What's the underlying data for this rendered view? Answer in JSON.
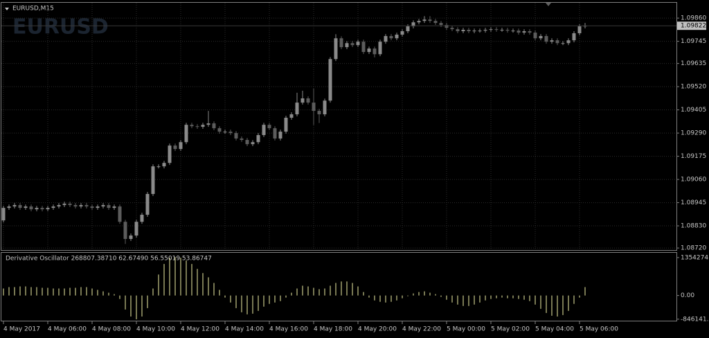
{
  "chart_data": [
    {
      "type": "candlestick",
      "title": "EURUSD,M15",
      "watermark": "EURUSD",
      "open": [
        1.08857,
        1.08919,
        1.08926,
        1.08933,
        1.08919,
        1.08926,
        1.08912,
        1.08919,
        1.08912,
        1.08919,
        1.08926,
        1.08933,
        1.0894,
        1.08933,
        1.08926,
        1.08933,
        1.08926,
        1.08919,
        1.08926,
        1.08933,
        1.08919,
        1.08926,
        1.0885,
        1.08765,
        1.08782,
        1.0885,
        1.08885,
        1.08988,
        1.09125,
        1.09125,
        1.09142,
        1.09228,
        1.09211,
        1.09245,
        1.09331,
        1.09324,
        1.09321,
        1.09331,
        1.09338,
        1.09314,
        1.09297,
        1.09297,
        1.0929,
        1.09263,
        1.09256,
        1.09235,
        1.09245,
        1.0928,
        1.09331,
        1.09314,
        1.09263,
        1.09297,
        1.09366,
        1.09383,
        1.09441,
        1.09462,
        1.09441,
        1.094,
        1.09383,
        1.09451,
        1.09657,
        1.0976,
        1.09716,
        1.09736,
        1.09726,
        1.09743,
        1.09692,
        1.09709,
        1.09681,
        1.09743,
        1.09771,
        1.0976,
        1.09778,
        1.09795,
        1.09819,
        1.09839,
        1.09846,
        1.09853,
        1.09846,
        1.09836,
        1.09826,
        1.09812,
        1.09805,
        1.09795,
        1.09802,
        1.09795,
        1.09798,
        1.09798,
        1.09802,
        1.09805,
        1.09802,
        1.09802,
        1.09798,
        1.09798,
        1.09788,
        1.09795,
        1.09788,
        1.0976,
        1.09771,
        1.09743,
        1.0975,
        1.09736,
        1.09736,
        1.0975,
        1.09785,
        1.09819
      ],
      "high": [
        1.08929,
        1.08936,
        1.08943,
        1.08943,
        1.08936,
        1.08936,
        1.08929,
        1.08929,
        1.08929,
        1.08936,
        1.08943,
        1.0895,
        1.0895,
        1.08943,
        1.08943,
        1.08943,
        1.08936,
        1.08936,
        1.08943,
        1.08943,
        1.08936,
        1.08936,
        1.0886,
        1.08792,
        1.0886,
        1.08895,
        1.08998,
        1.09135,
        1.09135,
        1.09152,
        1.09238,
        1.09238,
        1.09255,
        1.09341,
        1.09341,
        1.09334,
        1.09341,
        1.094,
        1.09348,
        1.09324,
        1.09307,
        1.09307,
        1.093,
        1.09273,
        1.09266,
        1.09255,
        1.0929,
        1.09341,
        1.09341,
        1.09324,
        1.09307,
        1.09376,
        1.09393,
        1.0949,
        1.095,
        1.09472,
        1.0951,
        1.0941,
        1.09461,
        1.09667,
        1.0978,
        1.0977,
        1.09746,
        1.09746,
        1.09753,
        1.09753,
        1.09719,
        1.09719,
        1.09753,
        1.09781,
        1.09781,
        1.09788,
        1.09805,
        1.09829,
        1.09849,
        1.09856,
        1.0987,
        1.0987,
        1.09856,
        1.09846,
        1.09836,
        1.09822,
        1.09815,
        1.09812,
        1.09812,
        1.09808,
        1.09808,
        1.09812,
        1.09815,
        1.09815,
        1.09812,
        1.09812,
        1.09808,
        1.09808,
        1.09805,
        1.09805,
        1.09798,
        1.09781,
        1.09781,
        1.0976,
        1.0976,
        1.09746,
        1.0976,
        1.09795,
        1.09829,
        1.09836
      ],
      "low": [
        1.08847,
        1.08909,
        1.08916,
        1.08909,
        1.08909,
        1.08902,
        1.08902,
        1.08902,
        1.08902,
        1.08909,
        1.08916,
        1.08923,
        1.08923,
        1.08916,
        1.08916,
        1.08916,
        1.08909,
        1.08909,
        1.08916,
        1.08909,
        1.08909,
        1.0884,
        1.0874,
        1.08755,
        1.08772,
        1.0884,
        1.08875,
        1.08978,
        1.09115,
        1.09115,
        1.09132,
        1.09201,
        1.09201,
        1.09235,
        1.09314,
        1.09311,
        1.09311,
        1.09321,
        1.09304,
        1.09287,
        1.09287,
        1.0928,
        1.09253,
        1.09246,
        1.09225,
        1.09225,
        1.09235,
        1.0927,
        1.09304,
        1.09253,
        1.09253,
        1.09287,
        1.09356,
        1.09373,
        1.09431,
        1.09431,
        1.0933,
        1.0934,
        1.09373,
        1.09441,
        1.09647,
        1.09706,
        1.09706,
        1.09716,
        1.09716,
        1.09682,
        1.09682,
        1.09665,
        1.09671,
        1.09733,
        1.0975,
        1.0975,
        1.09768,
        1.09785,
        1.09809,
        1.09829,
        1.09836,
        1.09836,
        1.09826,
        1.09816,
        1.09802,
        1.09795,
        1.09785,
        1.09785,
        1.09785,
        1.09785,
        1.09788,
        1.09788,
        1.09792,
        1.09792,
        1.09792,
        1.09788,
        1.09788,
        1.09778,
        1.09778,
        1.09778,
        1.0975,
        1.0975,
        1.09733,
        1.09733,
        1.09726,
        1.09726,
        1.09726,
        1.0974,
        1.09775,
        1.09809
      ],
      "close": [
        1.08919,
        1.08926,
        1.08933,
        1.08919,
        1.08926,
        1.08912,
        1.08919,
        1.08912,
        1.08919,
        1.08926,
        1.08933,
        1.0894,
        1.08933,
        1.08926,
        1.08933,
        1.08926,
        1.08919,
        1.08926,
        1.08933,
        1.08919,
        1.08926,
        1.0885,
        1.08765,
        1.08782,
        1.0885,
        1.08885,
        1.08988,
        1.09125,
        1.09125,
        1.09142,
        1.09228,
        1.09211,
        1.09245,
        1.09331,
        1.09324,
        1.09321,
        1.09331,
        1.09338,
        1.09314,
        1.09297,
        1.09297,
        1.0929,
        1.09263,
        1.09256,
        1.09235,
        1.09245,
        1.0928,
        1.09331,
        1.09314,
        1.09263,
        1.09297,
        1.09366,
        1.09383,
        1.09441,
        1.09462,
        1.09441,
        1.094,
        1.09383,
        1.09451,
        1.09657,
        1.0976,
        1.09716,
        1.09736,
        1.09726,
        1.09743,
        1.09692,
        1.09709,
        1.09681,
        1.09743,
        1.09771,
        1.0976,
        1.09778,
        1.09795,
        1.09819,
        1.09839,
        1.09846,
        1.09853,
        1.09846,
        1.09836,
        1.09826,
        1.09812,
        1.09805,
        1.09795,
        1.09802,
        1.09795,
        1.09798,
        1.09798,
        1.09802,
        1.09805,
        1.09802,
        1.09802,
        1.09798,
        1.09798,
        1.09788,
        1.09795,
        1.09788,
        1.0976,
        1.09771,
        1.09743,
        1.0975,
        1.09736,
        1.09736,
        1.0975,
        1.09785,
        1.09819,
        1.09822
      ],
      "up_color": "#8a8a8a",
      "down_color": "#5c5c5c",
      "ylim": [
        1.0871,
        1.09936
      ],
      "yticks": [
        {
          "value": 1.0986,
          "label": "1.09860"
        },
        {
          "value": 1.09745,
          "label": "1.09745"
        },
        {
          "value": 1.09635,
          "label": "1.09635"
        },
        {
          "value": 1.0952,
          "label": "1.09520"
        },
        {
          "value": 1.09405,
          "label": "1.09405"
        },
        {
          "value": 1.0929,
          "label": "1.09290"
        },
        {
          "value": 1.09175,
          "label": "1.09175"
        },
        {
          "value": 1.0906,
          "label": "1.09060"
        },
        {
          "value": 1.08945,
          "label": "1.08945"
        },
        {
          "value": 1.0883,
          "label": "1.08830"
        },
        {
          "value": 1.0872,
          "label": "1.08720"
        }
      ],
      "grid": true
    },
    {
      "type": "histogram",
      "title": "Derivative Oscillator 268807.38710 62.67490 56.55019 53.86747",
      "categories": [
        "4 May 2017",
        null,
        null,
        null,
        null,
        null,
        null,
        null,
        "4 May 06:00",
        null,
        null,
        null,
        null,
        null,
        null,
        null,
        "4 May 08:00",
        null,
        null,
        null,
        null,
        null,
        null,
        null,
        "4 May 10:00",
        null,
        null,
        null,
        null,
        null,
        null,
        null,
        "4 May 12:00",
        null,
        null,
        null,
        null,
        null,
        null,
        null,
        "4 May 14:00",
        null,
        null,
        null,
        null,
        null,
        null,
        null,
        "4 May 16:00",
        null,
        null,
        null,
        null,
        null,
        null,
        null,
        "4 May 18:00",
        null,
        null,
        null,
        null,
        null,
        null,
        null,
        "4 May 20:00",
        null,
        null,
        null,
        null,
        null,
        null,
        null,
        "4 May 22:00",
        null,
        null,
        null,
        null,
        null,
        null,
        null,
        "5 May 00:00",
        null,
        null,
        null,
        null,
        null,
        null,
        null,
        "5 May 02:00",
        null,
        null,
        null,
        null,
        null,
        null,
        null,
        "5 May 04:00",
        null,
        null,
        null,
        null,
        null,
        null,
        null,
        "5 May 06:00",
        null
      ],
      "values": [
        250000,
        300000,
        300000,
        325000,
        325000,
        300000,
        300000,
        275000,
        275000,
        250000,
        250000,
        250000,
        275000,
        275000,
        300000,
        300000,
        250000,
        200000,
        150000,
        100000,
        50000,
        -125000,
        -500000,
        -750000,
        -850000,
        -750000,
        -450000,
        250000,
        750000,
        1125000,
        1350000,
        1375000,
        1350000,
        1250000,
        1125000,
        950000,
        800000,
        650000,
        450000,
        200000,
        -75000,
        -250000,
        -450000,
        -600000,
        -675000,
        -650000,
        -550000,
        -400000,
        -300000,
        -250000,
        -200000,
        -75000,
        100000,
        250000,
        350000,
        325000,
        275000,
        225000,
        250000,
        350000,
        450000,
        500000,
        500000,
        450000,
        325000,
        125000,
        -75000,
        -175000,
        -225000,
        -250000,
        -225000,
        -175000,
        -100000,
        -25000,
        75000,
        125000,
        150000,
        100000,
        50000,
        -50000,
        -150000,
        -250000,
        -325000,
        -375000,
        -375000,
        -325000,
        -250000,
        -175000,
        -125000,
        -100000,
        -75000,
        -100000,
        -100000,
        -125000,
        -150000,
        -200000,
        -325000,
        -475000,
        -625000,
        -725000,
        -750000,
        -700000,
        -550000,
        -300000,
        -75000,
        300000
      ],
      "color": "#f2f2a6",
      "ylim": [
        -900000,
        1550000
      ],
      "yticks": [
        {
          "value": 1354274,
          "label": "1354274."
        },
        {
          "value": 0,
          "label": "0.00"
        },
        {
          "value": -846141,
          "label": "-846141."
        }
      ]
    }
  ]
}
